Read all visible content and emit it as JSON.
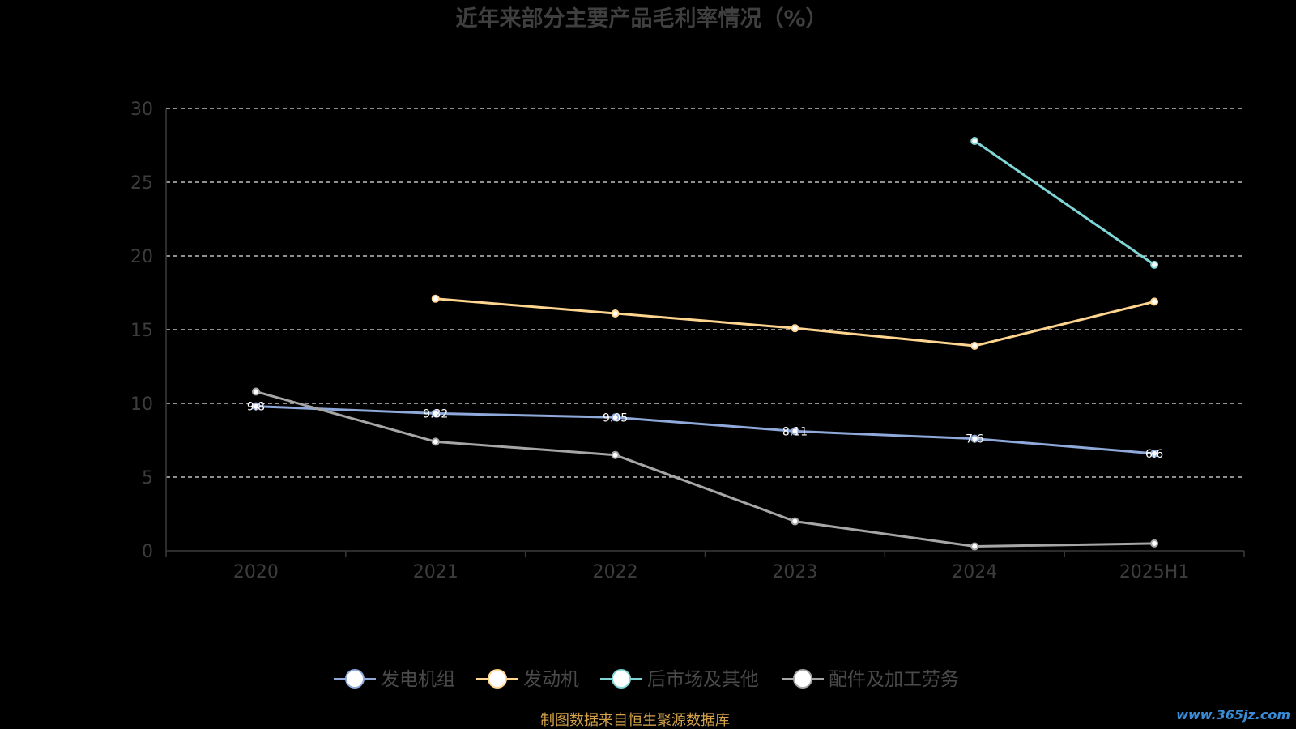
{
  "chart_data": {
    "type": "line",
    "title": "近年来部分主要产品毛利率情况（%）",
    "categories": [
      "2020",
      "2021",
      "2022",
      "2023",
      "2024",
      "2025H1"
    ],
    "ylim": [
      0,
      30
    ],
    "yticks": [
      0,
      5,
      10,
      15,
      20,
      25,
      30
    ],
    "grid": true,
    "legend_position": "bottom",
    "series": [
      {
        "name": "发电机组",
        "color": "#8fa9db",
        "values": [
          9.8,
          9.32,
          9.05,
          8.11,
          7.6,
          6.6
        ]
      },
      {
        "name": "发动机",
        "color": "#ffd58f",
        "values": [
          null,
          17.1,
          16.1,
          15.1,
          13.9,
          16.9
        ]
      },
      {
        "name": "后市场及其他",
        "color": "#7fd6d6",
        "values": [
          null,
          null,
          null,
          null,
          27.8,
          19.4
        ]
      },
      {
        "name": "配件及加工劳务",
        "color": "#a6a6a6",
        "values": [
          10.8,
          7.4,
          6.5,
          2.0,
          0.3,
          0.5
        ]
      }
    ]
  },
  "source_note": "制图数据来自恒生聚源数据库",
  "watermark": "www.365jz.com"
}
